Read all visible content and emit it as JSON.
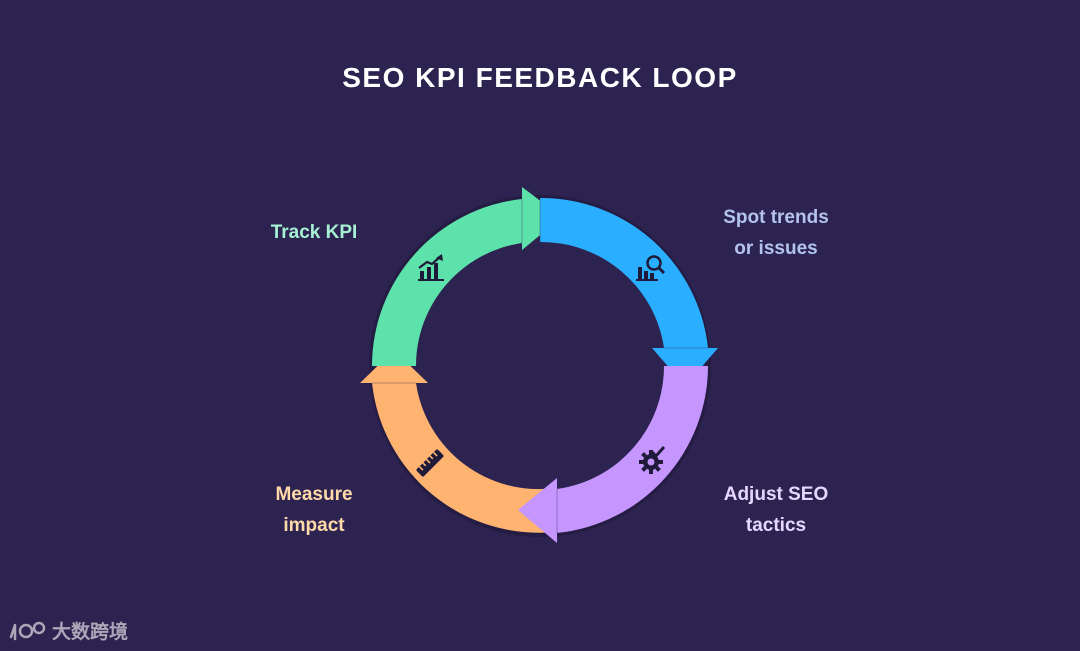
{
  "title": "SEO KPI FEEDBACK LOOP",
  "stages": [
    {
      "id": "track",
      "lines": [
        "Track KPI"
      ],
      "color": "#5ee2ac",
      "icon": "growth-chart-icon"
    },
    {
      "id": "spot",
      "lines": [
        "Spot trends",
        "or issues"
      ],
      "color": "#2aaeff",
      "icon": "chart-magnifier-icon"
    },
    {
      "id": "adjust",
      "lines": [
        "Adjust SEO",
        "tactics"
      ],
      "color": "#c696ff",
      "icon": "gear-check-icon"
    },
    {
      "id": "measure",
      "lines": [
        "Measure",
        "impact"
      ],
      "color": "#ffb371",
      "icon": "ruler-icon"
    }
  ],
  "label_colors": {
    "track": "#a6f0d4",
    "spot": "#b3c3ee",
    "adjust": "#e5d7ff",
    "measure": "#ffd9a8"
  },
  "watermark": {
    "logo": "100-logo",
    "text": "大数跨境"
  }
}
